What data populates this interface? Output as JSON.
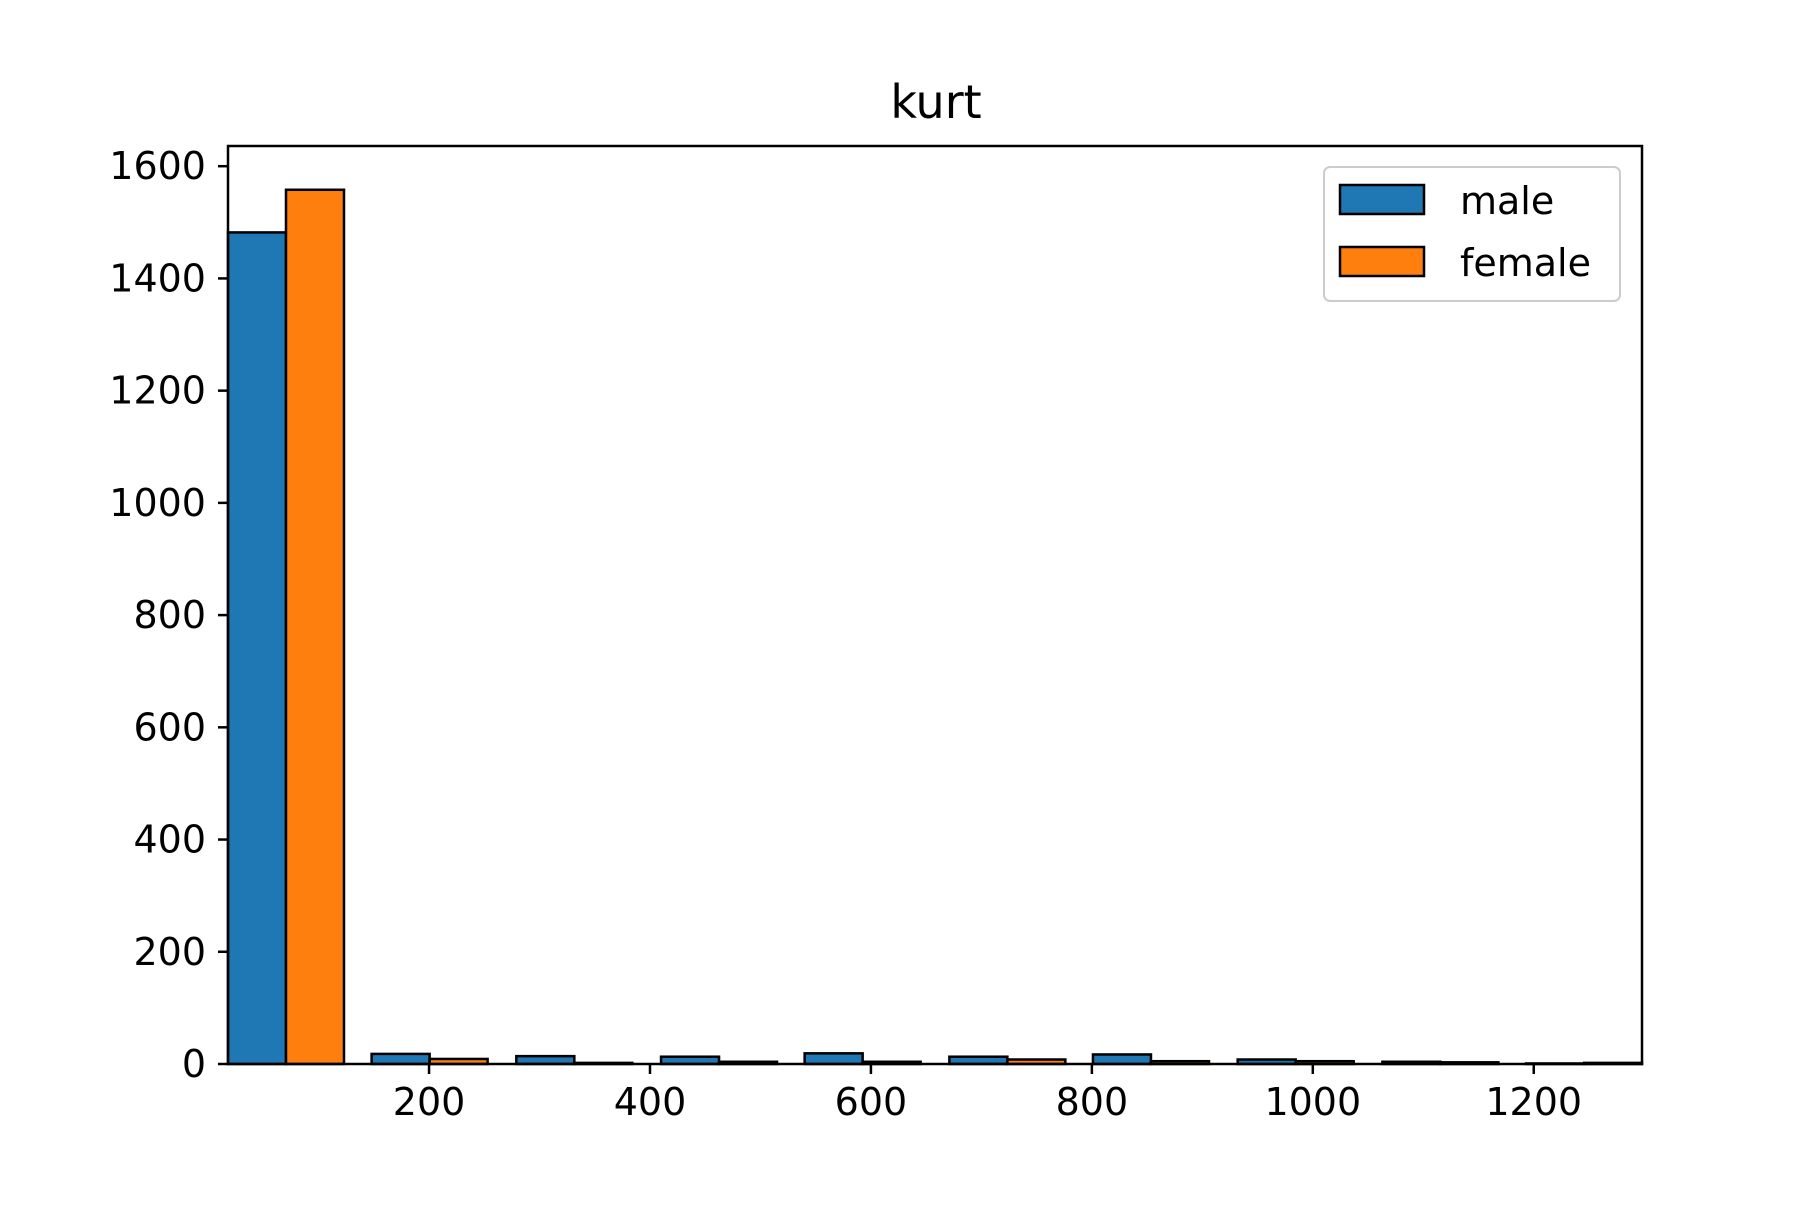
{
  "chart_data": {
    "type": "bar",
    "title": "kurt",
    "xlabel": "",
    "ylabel": "",
    "xlim": [
      18,
      1298
    ],
    "ylim": [
      0,
      1636
    ],
    "xticks": [
      200,
      400,
      600,
      800,
      1000,
      1200
    ],
    "yticks": [
      0,
      200,
      400,
      600,
      800,
      1000,
      1200,
      1400,
      1600
    ],
    "bins": [
      [
        18,
        123
      ],
      [
        148,
        253
      ],
      [
        279,
        384
      ],
      [
        410,
        515
      ],
      [
        540,
        645
      ],
      [
        671,
        776
      ],
      [
        801,
        906
      ],
      [
        932,
        1037
      ],
      [
        1063,
        1168
      ],
      [
        1193,
        1298
      ]
    ],
    "series": [
      {
        "name": "male",
        "color": "#1f77b4",
        "values": [
          1482,
          18,
          14,
          13,
          19,
          13,
          17,
          8,
          4,
          1
        ]
      },
      {
        "name": "female",
        "color": "#ff7f0e",
        "values": [
          1558,
          9,
          2,
          4,
          4,
          8,
          5,
          5,
          3,
          2
        ]
      }
    ],
    "legend_position": "top-right",
    "grid": false
  }
}
